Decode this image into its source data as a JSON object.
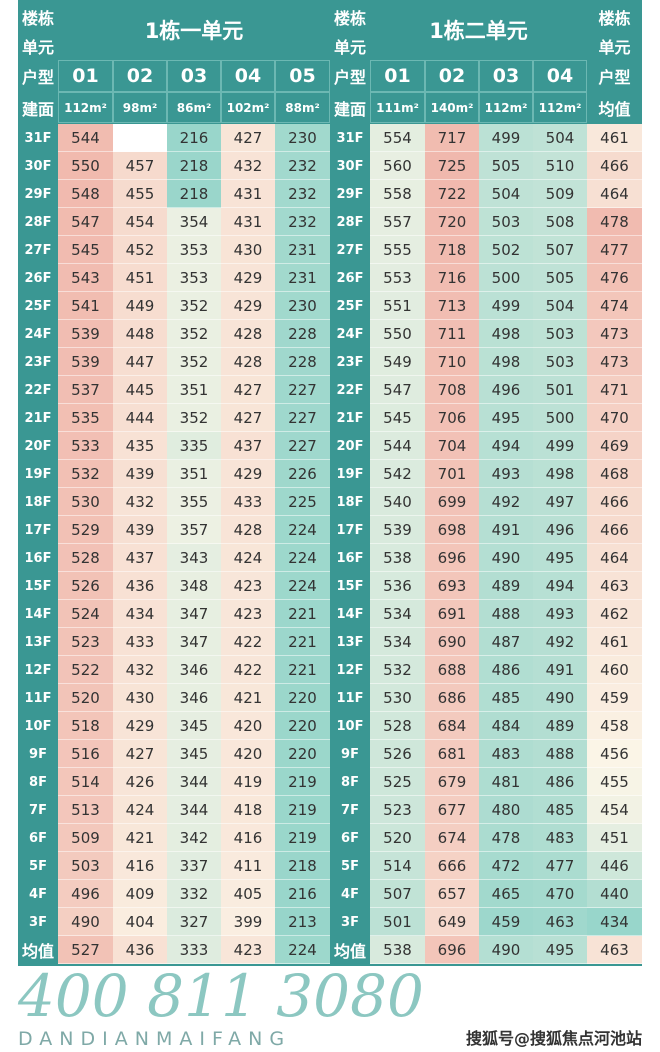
{
  "header": {
    "side_labels": {
      "building": "楼栋",
      "unit": "单元",
      "type": "户型",
      "area": "建面",
      "avg": "均值"
    },
    "unit1": {
      "title": "1栋一单元",
      "types": [
        "01",
        "02",
        "03",
        "04",
        "05"
      ],
      "areas": [
        "112m²",
        "98m²",
        "86m²",
        "102m²",
        "88m²"
      ]
    },
    "unit2": {
      "title": "1栋二单元",
      "types": [
        "01",
        "02",
        "03",
        "04"
      ],
      "areas": [
        "111m²",
        "140m²",
        "112m²",
        "112m²"
      ]
    }
  },
  "colors": {
    "header": "#3a9793",
    "high": "#f0b6ab",
    "mid": "#fbf5e7",
    "low": "#8fd3c8"
  },
  "rows": [
    {
      "floor": "31F",
      "u1": [
        544,
        "",
        216,
        427,
        230
      ],
      "u2": [
        554,
        717,
        499,
        504
      ],
      "avg": 461
    },
    {
      "floor": "30F",
      "u1": [
        550,
        457,
        218,
        432,
        232
      ],
      "u2": [
        560,
        725,
        505,
        510
      ],
      "avg": 466
    },
    {
      "floor": "29F",
      "u1": [
        548,
        455,
        218,
        431,
        232
      ],
      "u2": [
        558,
        722,
        504,
        509
      ],
      "avg": 464
    },
    {
      "floor": "28F",
      "u1": [
        547,
        454,
        354,
        431,
        232
      ],
      "u2": [
        557,
        720,
        503,
        508
      ],
      "avg": 478
    },
    {
      "floor": "27F",
      "u1": [
        545,
        452,
        353,
        430,
        231
      ],
      "u2": [
        555,
        718,
        502,
        507
      ],
      "avg": 477
    },
    {
      "floor": "26F",
      "u1": [
        543,
        451,
        353,
        429,
        231
      ],
      "u2": [
        553,
        716,
        500,
        505
      ],
      "avg": 476
    },
    {
      "floor": "25F",
      "u1": [
        541,
        449,
        352,
        429,
        230
      ],
      "u2": [
        551,
        713,
        499,
        504
      ],
      "avg": 474
    },
    {
      "floor": "24F",
      "u1": [
        539,
        448,
        352,
        428,
        228
      ],
      "u2": [
        550,
        711,
        498,
        503
      ],
      "avg": 473
    },
    {
      "floor": "23F",
      "u1": [
        539,
        447,
        352,
        428,
        228
      ],
      "u2": [
        549,
        710,
        498,
        503
      ],
      "avg": 473
    },
    {
      "floor": "22F",
      "u1": [
        537,
        445,
        351,
        427,
        227
      ],
      "u2": [
        547,
        708,
        496,
        501
      ],
      "avg": 471
    },
    {
      "floor": "21F",
      "u1": [
        535,
        444,
        352,
        427,
        227
      ],
      "u2": [
        545,
        706,
        495,
        500
      ],
      "avg": 470
    },
    {
      "floor": "20F",
      "u1": [
        533,
        435,
        335,
        437,
        227
      ],
      "u2": [
        544,
        704,
        494,
        499
      ],
      "avg": 469
    },
    {
      "floor": "19F",
      "u1": [
        532,
        439,
        351,
        429,
        226
      ],
      "u2": [
        542,
        701,
        493,
        498
      ],
      "avg": 468
    },
    {
      "floor": "18F",
      "u1": [
        530,
        432,
        355,
        433,
        225
      ],
      "u2": [
        540,
        699,
        492,
        497
      ],
      "avg": 466
    },
    {
      "floor": "17F",
      "u1": [
        529,
        439,
        357,
        428,
        224
      ],
      "u2": [
        539,
        698,
        491,
        496
      ],
      "avg": 466
    },
    {
      "floor": "16F",
      "u1": [
        528,
        437,
        343,
        424,
        224
      ],
      "u2": [
        538,
        696,
        490,
        495
      ],
      "avg": 464
    },
    {
      "floor": "15F",
      "u1": [
        526,
        436,
        348,
        423,
        224
      ],
      "u2": [
        536,
        693,
        489,
        494
      ],
      "avg": 463
    },
    {
      "floor": "14F",
      "u1": [
        524,
        434,
        347,
        423,
        221
      ],
      "u2": [
        534,
        691,
        488,
        493
      ],
      "avg": 462
    },
    {
      "floor": "13F",
      "u1": [
        523,
        433,
        347,
        422,
        221
      ],
      "u2": [
        534,
        690,
        487,
        492
      ],
      "avg": 461
    },
    {
      "floor": "12F",
      "u1": [
        522,
        432,
        346,
        422,
        221
      ],
      "u2": [
        532,
        688,
        486,
        491
      ],
      "avg": 460
    },
    {
      "floor": "11F",
      "u1": [
        520,
        430,
        346,
        421,
        220
      ],
      "u2": [
        530,
        686,
        485,
        490
      ],
      "avg": 459
    },
    {
      "floor": "10F",
      "u1": [
        518,
        429,
        345,
        420,
        220
      ],
      "u2": [
        528,
        684,
        484,
        489
      ],
      "avg": 458
    },
    {
      "floor": "9F",
      "u1": [
        516,
        427,
        345,
        420,
        220
      ],
      "u2": [
        526,
        681,
        483,
        488
      ],
      "avg": 456
    },
    {
      "floor": "8F",
      "u1": [
        514,
        426,
        344,
        419,
        219
      ],
      "u2": [
        525,
        679,
        481,
        486
      ],
      "avg": 455
    },
    {
      "floor": "7F",
      "u1": [
        513,
        424,
        344,
        418,
        219
      ],
      "u2": [
        523,
        677,
        480,
        485
      ],
      "avg": 454
    },
    {
      "floor": "6F",
      "u1": [
        509,
        421,
        342,
        416,
        219
      ],
      "u2": [
        520,
        674,
        478,
        483
      ],
      "avg": 451
    },
    {
      "floor": "5F",
      "u1": [
        503,
        416,
        337,
        411,
        218
      ],
      "u2": [
        514,
        666,
        472,
        477
      ],
      "avg": 446
    },
    {
      "floor": "4F",
      "u1": [
        496,
        409,
        332,
        405,
        216
      ],
      "u2": [
        507,
        657,
        465,
        470
      ],
      "avg": 440
    },
    {
      "floor": "3F",
      "u1": [
        490,
        404,
        327,
        399,
        213
      ],
      "u2": [
        501,
        649,
        459,
        463
      ],
      "avg": 434
    }
  ],
  "average_row": {
    "label": "均值",
    "u1": [
      527,
      436,
      333,
      423,
      224
    ],
    "u2": [
      538,
      696,
      490,
      495
    ],
    "avg": 463
  },
  "watermarks": {
    "phone": "400 811 3080",
    "brand": "DANDIANMAIFANG",
    "source": "搜狐号@搜狐焦点河池站"
  }
}
